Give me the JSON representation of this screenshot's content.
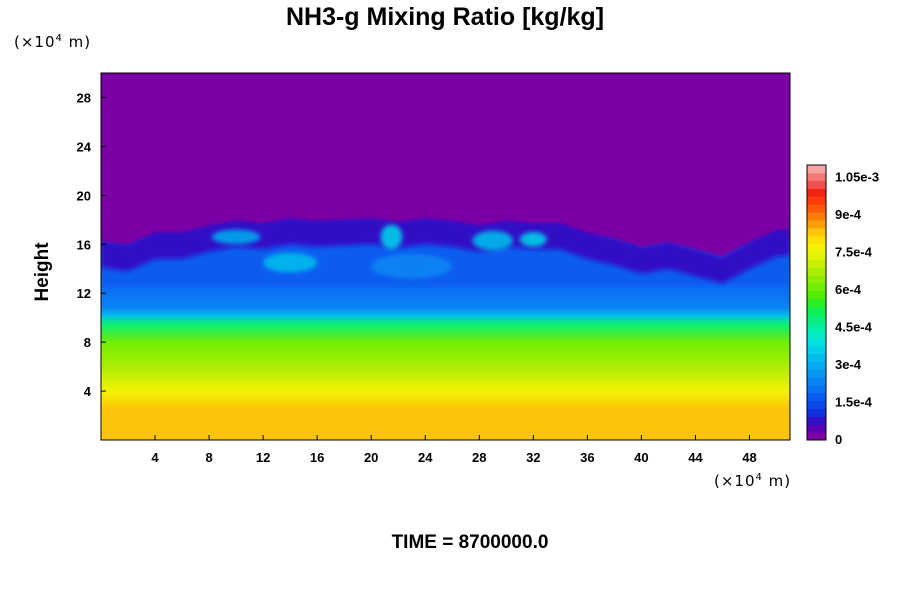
{
  "chart_data": {
    "type": "heatmap",
    "title": "NH3-g Mixing Ratio [kg/kg]",
    "ylabel": "Height",
    "x_unit": {
      "prefix": "(×10",
      "exponent": "4",
      "suffix": " m)"
    },
    "y_unit": {
      "prefix": "(×10",
      "exponent": "4",
      "suffix": " m)"
    },
    "xlim": [
      0,
      51
    ],
    "ylim": [
      0,
      30
    ],
    "xticks": [
      "4",
      "8",
      "12",
      "16",
      "20",
      "24",
      "28",
      "32",
      "36",
      "40",
      "44",
      "48"
    ],
    "yticks": [
      "4",
      "8",
      "12",
      "16",
      "20",
      "24",
      "28"
    ],
    "footer": "TIME = 8700000.0",
    "colorbar": {
      "range": [
        0,
        0.0011
      ],
      "tick_labels": [
        "0",
        "1.5e-4",
        "3e-4",
        "4.5e-4",
        "6e-4",
        "7.5e-4",
        "9e-4",
        "1.05e-3"
      ],
      "tick_values": [
        0,
        0.00015,
        0.0003,
        0.00045,
        0.0006,
        0.00075,
        0.0009,
        0.00105
      ],
      "colors": [
        "#7a00a6",
        "#5a00b0",
        "#3010c6",
        "#1030dc",
        "#0a48e8",
        "#0a5cf0",
        "#0a72f4",
        "#0a86f4",
        "#0898f0",
        "#06aaf0",
        "#04bcec",
        "#04d0ea",
        "#04e2e0",
        "#04ecc4",
        "#06eea0",
        "#08ee7a",
        "#10ee50",
        "#2cee22",
        "#50ee06",
        "#70ee04",
        "#90ee04",
        "#acee04",
        "#c8f006",
        "#e0f606",
        "#f4f206",
        "#fce206",
        "#fcc40a",
        "#fca00a",
        "#fc7c0a",
        "#fc5a0a",
        "#fc3a0a",
        "#f42212",
        "#f05050",
        "#f47878",
        "#f8a4a4"
      ]
    },
    "field_profile": [
      {
        "height": 0,
        "value": 0.00083
      },
      {
        "height": 2.5,
        "value": 0.00082
      },
      {
        "height": 4,
        "value": 0.00076
      },
      {
        "height": 6,
        "value": 0.00068
      },
      {
        "height": 8,
        "value": 0.0006
      },
      {
        "height": 9.5,
        "value": 0.0005
      },
      {
        "height": 10.2,
        "value": 0.00033
      },
      {
        "height": 10.8,
        "value": 0.00024
      },
      {
        "height": 12,
        "value": 0.00021
      },
      {
        "height": 15,
        "value": 0.00016
      },
      {
        "height": 17,
        "value": 6e-05
      },
      {
        "height": 18.5,
        "value": 0.0
      },
      {
        "height": 30,
        "value": 0.0
      }
    ],
    "cloud_top_profile": [
      {
        "x": 0,
        "top": 16.3
      },
      {
        "x": 2,
        "top": 16.0
      },
      {
        "x": 4,
        "top": 17.0
      },
      {
        "x": 6,
        "top": 17.0
      },
      {
        "x": 8,
        "top": 17.6
      },
      {
        "x": 10,
        "top": 18.0
      },
      {
        "x": 12,
        "top": 17.8
      },
      {
        "x": 14,
        "top": 18.2
      },
      {
        "x": 16,
        "top": 18.0
      },
      {
        "x": 18,
        "top": 18.1
      },
      {
        "x": 20,
        "top": 18.2
      },
      {
        "x": 22,
        "top": 17.9
      },
      {
        "x": 24,
        "top": 18.2
      },
      {
        "x": 26,
        "top": 18.0
      },
      {
        "x": 28,
        "top": 17.6
      },
      {
        "x": 30,
        "top": 18.0
      },
      {
        "x": 32,
        "top": 17.8
      },
      {
        "x": 34,
        "top": 17.8
      },
      {
        "x": 36,
        "top": 17.0
      },
      {
        "x": 38,
        "top": 16.5
      },
      {
        "x": 40,
        "top": 15.8
      },
      {
        "x": 42,
        "top": 16.2
      },
      {
        "x": 44,
        "top": 15.6
      },
      {
        "x": 46,
        "top": 15.0
      },
      {
        "x": 48,
        "top": 16.2
      },
      {
        "x": 50,
        "top": 17.2
      },
      {
        "x": 51,
        "top": 17.3
      }
    ],
    "plumes": [
      {
        "x": 14,
        "y": 14.5,
        "rx": 2.0,
        "ry": 0.8,
        "value": 0.00034
      },
      {
        "x": 21.5,
        "y": 16.6,
        "rx": 0.8,
        "ry": 1.0,
        "value": 0.00036
      },
      {
        "x": 29,
        "y": 16.3,
        "rx": 1.5,
        "ry": 0.8,
        "value": 0.00033
      },
      {
        "x": 32,
        "y": 16.4,
        "rx": 1.0,
        "ry": 0.6,
        "value": 0.00035
      },
      {
        "x": 10,
        "y": 16.6,
        "rx": 1.8,
        "ry": 0.6,
        "value": 0.0003
      },
      {
        "x": 23,
        "y": 14.2,
        "rx": 3.0,
        "ry": 1.0,
        "value": 0.00025
      }
    ]
  }
}
